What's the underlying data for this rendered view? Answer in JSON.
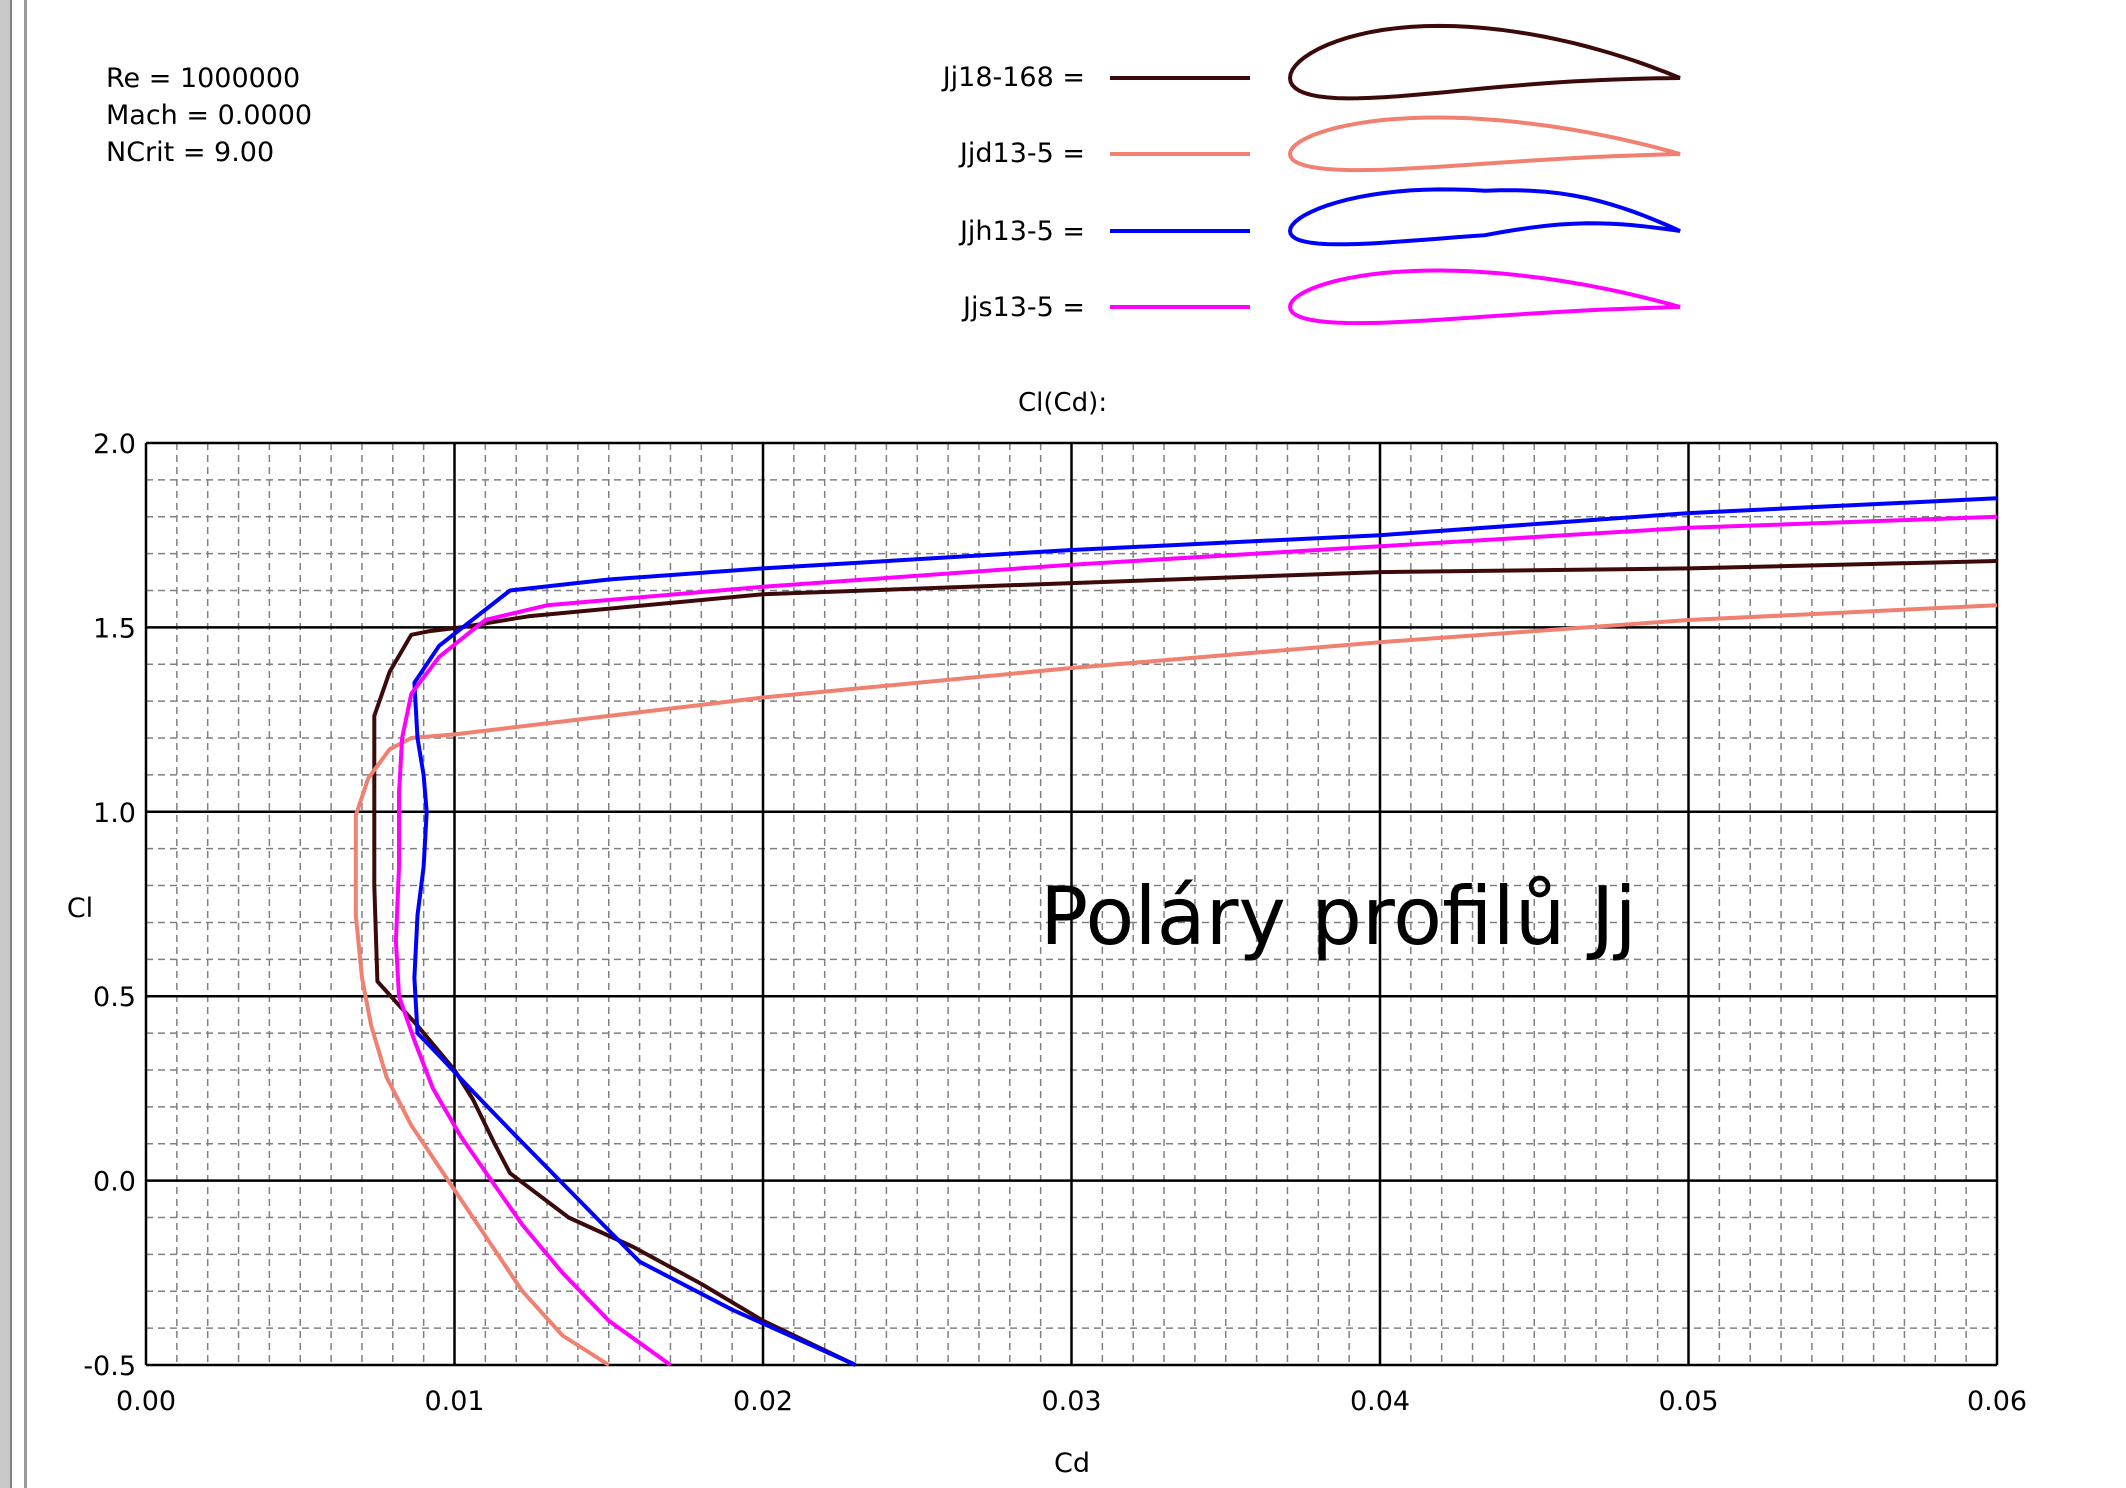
{
  "params": {
    "re": "Re = 1000000",
    "mach": "Mach = 0.0000",
    "ncrit": "NCrit = 9.00"
  },
  "chart_data": {
    "type": "line",
    "title": "Cl(Cd):",
    "xlabel": "Cd",
    "ylabel": "Cl",
    "xlim": [
      0.0,
      0.06
    ],
    "ylim": [
      -0.5,
      2.0
    ],
    "grid": true,
    "legend_placement": "top",
    "annotation": "Poláry profilů Jj",
    "x_ticks": [
      "0.00",
      "0.01",
      "0.02",
      "0.03",
      "0.04",
      "0.05",
      "0.06"
    ],
    "y_ticks": [
      "-0.5",
      "0.0",
      "0.5",
      "1.0",
      "1.5",
      "2.0"
    ],
    "series": [
      {
        "name": "Jj18-168",
        "label": "Jj18-168 =",
        "color": "#3c0a0a",
        "x": [
          0.023,
          0.02,
          0.018,
          0.0158,
          0.0137,
          0.0118,
          0.0113,
          0.0106,
          0.01,
          0.0088,
          0.0075,
          0.0074,
          0.0074,
          0.0079,
          0.0086,
          0.0092,
          0.0102,
          0.0124,
          0.02,
          0.03,
          0.04,
          0.05,
          0.06
        ],
        "y": [
          -0.5,
          -0.38,
          -0.28,
          -0.18,
          -0.1,
          0.02,
          0.1,
          0.22,
          0.3,
          0.42,
          0.54,
          0.8,
          1.26,
          1.38,
          1.48,
          1.49,
          1.5,
          1.53,
          1.59,
          1.62,
          1.65,
          1.66,
          1.68
        ]
      },
      {
        "name": "Jjd13-5",
        "label": "Jjd13-5 =",
        "color": "#f08070",
        "x": [
          0.015,
          0.0135,
          0.0122,
          0.011,
          0.0098,
          0.0086,
          0.0078,
          0.0073,
          0.007,
          0.0068,
          0.0068,
          0.0072,
          0.0079,
          0.0086,
          0.01,
          0.02,
          0.03,
          0.04,
          0.05,
          0.06
        ],
        "y": [
          -0.5,
          -0.42,
          -0.3,
          -0.15,
          0.0,
          0.15,
          0.28,
          0.42,
          0.55,
          0.72,
          0.99,
          1.09,
          1.17,
          1.2,
          1.21,
          1.31,
          1.39,
          1.46,
          1.52,
          1.56
        ]
      },
      {
        "name": "Jjh13-5",
        "label": "Jjh13-5 =",
        "color": "#0000ff",
        "x": [
          0.023,
          0.019,
          0.016,
          0.014,
          0.012,
          0.0105,
          0.0096,
          0.0088,
          0.0087,
          0.0088,
          0.009,
          0.0091,
          0.009,
          0.0088,
          0.0087,
          0.0095,
          0.0118,
          0.015,
          0.02,
          0.03,
          0.04,
          0.05,
          0.06
        ],
        "y": [
          -0.5,
          -0.35,
          -0.22,
          -0.05,
          0.12,
          0.25,
          0.33,
          0.4,
          0.55,
          0.72,
          0.85,
          1.0,
          1.1,
          1.2,
          1.35,
          1.45,
          1.6,
          1.63,
          1.66,
          1.71,
          1.75,
          1.81,
          1.85
        ]
      },
      {
        "name": "Jjs13-5",
        "label": "Jjs13-5 =",
        "color": "#ff00ff",
        "x": [
          0.017,
          0.015,
          0.0135,
          0.0122,
          0.0112,
          0.0102,
          0.0093,
          0.0087,
          0.0082,
          0.0081,
          0.0082,
          0.0082,
          0.0083,
          0.0086,
          0.0095,
          0.011,
          0.013,
          0.02,
          0.03,
          0.04,
          0.05,
          0.06
        ],
        "y": [
          -0.5,
          -0.38,
          -0.25,
          -0.12,
          0.0,
          0.12,
          0.25,
          0.38,
          0.5,
          0.65,
          0.85,
          1.05,
          1.2,
          1.32,
          1.42,
          1.52,
          1.56,
          1.61,
          1.67,
          1.72,
          1.77,
          1.8
        ]
      }
    ]
  }
}
